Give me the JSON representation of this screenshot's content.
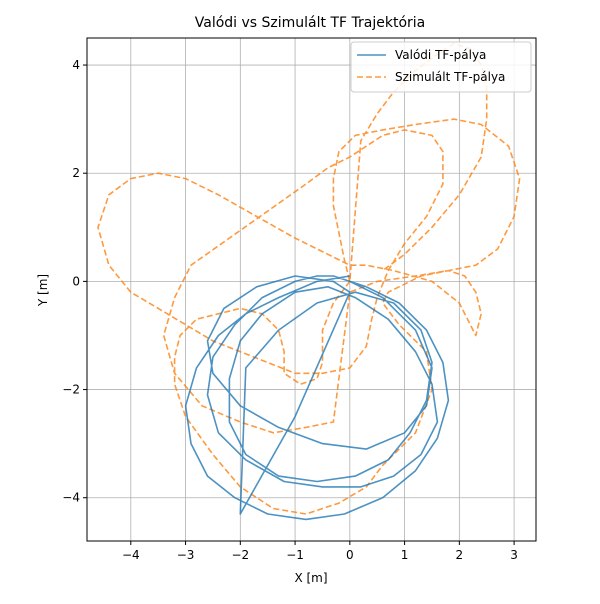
{
  "chart_data": {
    "type": "line",
    "title": "Valódi vs Szimulált TF Trajektória",
    "xlabel": "X [m]",
    "ylabel": "Y [m]",
    "xlim": [
      -4.8,
      3.4
    ],
    "ylim": [
      -4.8,
      4.5
    ],
    "grid": true,
    "legend_position": "top-right",
    "x_ticks": [
      -4,
      -3,
      -2,
      -1,
      0,
      1,
      2,
      3
    ],
    "y_ticks": [
      -4,
      -2,
      0,
      2,
      4
    ],
    "x_tick_labels": [
      "−4",
      "−3",
      "−2",
      "−1",
      "0",
      "1",
      "2",
      "3"
    ],
    "y_tick_labels": [
      "−4",
      "−2",
      "0",
      "2",
      "4"
    ],
    "series": [
      {
        "name": "Valódi TF-pálya",
        "color": "#1f77b4",
        "style": "solid",
        "x": [
          0,
          -0.6,
          -1.3,
          -1.9,
          -2.4,
          -2.8,
          -3.0,
          -2.9,
          -2.6,
          -2.1,
          -1.5,
          -0.8,
          -0.1,
          0.6,
          1.2,
          1.6,
          1.8,
          1.7,
          1.4,
          0.9,
          0.3,
          -0.3,
          -0.6,
          -1.0,
          -1.6,
          -2.1,
          -2.5,
          -2.6,
          -2.4,
          -1.9,
          -1.2,
          -0.5,
          0.2,
          0.8,
          1.3,
          1.6,
          1.5,
          1.2,
          0.7,
          0.1,
          -0.4,
          -1.0,
          -1.6,
          -2.0,
          -2.2,
          -2.2,
          -1.9,
          -1.3,
          -0.6,
          0.1,
          0.7,
          1.1,
          1.4,
          1.5,
          1.3,
          0.8,
          0.1,
          -0.6,
          -1.3,
          -1.9,
          -2.0,
          -1.0,
          0.0,
          -0.3,
          -1.0,
          -1.7,
          -2.3,
          -2.6,
          -2.5,
          -2.0,
          -1.3,
          -0.5,
          0.3,
          1.0,
          1.4,
          1.5,
          1.2,
          0.6,
          0.0
        ],
        "y": [
          0.1,
          0.0,
          -0.3,
          -0.6,
          -1.0,
          -1.6,
          -2.3,
          -3.0,
          -3.6,
          -4.0,
          -4.3,
          -4.4,
          -4.3,
          -4.0,
          -3.5,
          -2.9,
          -2.2,
          -1.5,
          -0.9,
          -0.4,
          -0.1,
          0.1,
          0.1,
          0.0,
          -0.3,
          -0.8,
          -1.4,
          -2.1,
          -2.8,
          -3.3,
          -3.7,
          -3.8,
          -3.8,
          -3.6,
          -3.2,
          -2.6,
          -1.9,
          -1.3,
          -0.7,
          -0.3,
          -0.1,
          -0.2,
          -0.6,
          -1.1,
          -1.8,
          -2.6,
          -3.2,
          -3.6,
          -3.7,
          -3.6,
          -3.3,
          -2.8,
          -2.2,
          -1.5,
          -0.9,
          -0.4,
          -0.2,
          -0.4,
          -0.9,
          -1.6,
          -4.3,
          -2.5,
          -0.2,
          0.0,
          0.1,
          -0.1,
          -0.5,
          -1.1,
          -1.7,
          -2.3,
          -2.7,
          -3.0,
          -3.1,
          -2.8,
          -2.3,
          -1.6,
          -0.9,
          -0.3,
          0.0
        ]
      },
      {
        "name": "Szimulált TF-pálya",
        "color": "#ff7f0e",
        "style": "dashed",
        "x": [
          0,
          -0.3,
          -0.5,
          -0.5,
          -0.6,
          -0.9,
          -1.2,
          -1.2,
          -1.3,
          -1.6,
          -2.0,
          -2.4,
          -2.8,
          -3.1,
          -3.2,
          -3.2,
          -3.0,
          -2.5,
          -2.0,
          -1.4,
          -0.8,
          -0.2,
          0.3,
          0.6,
          1.2,
          1.5,
          1.4,
          0.9,
          0.6,
          0.7,
          1.3,
          1.8,
          2.1,
          2.3,
          2.4,
          2.3,
          2.0,
          1.5,
          0.8,
          0.3,
          0.0,
          -0.4,
          -1.0,
          -1.7,
          -2.4,
          -3.0,
          -3.5,
          -4.0,
          -4.4,
          -4.6,
          -4.4,
          -4.0,
          -3.5,
          -3.0,
          -2.5,
          -2.0,
          -1.5,
          -1.0,
          -0.5,
          0.0,
          0.3,
          0.4,
          0.5,
          0.7,
          1.0,
          1.4,
          1.7,
          1.7,
          1.5,
          1.0,
          0.6,
          0.3,
          0.0,
          -0.4,
          -0.8,
          -1.5,
          -2.2,
          -2.9,
          -3.2,
          -3.4,
          -3.2,
          -2.7,
          -2.0,
          -1.4,
          -0.8,
          -0.3,
          0.0,
          0.5,
          1.2,
          1.8,
          2.3,
          2.7,
          3.0,
          3.1,
          2.9,
          2.4,
          1.9,
          1.2,
          0.6,
          0.1,
          -0.2,
          -0.3,
          -0.3,
          -0.2,
          -0.1,
          0.0,
          0.2,
          0.5,
          0.8,
          1.2,
          1.6,
          1.9,
          2.2,
          2.4,
          2.5,
          2.5,
          2.4,
          2.0,
          1.5,
          1.0,
          0.6
        ],
        "y": [
          0,
          -0.4,
          -0.9,
          -1.5,
          -1.8,
          -1.9,
          -1.7,
          -1.3,
          -0.9,
          -0.6,
          -0.5,
          -0.6,
          -0.7,
          -1.0,
          -1.4,
          -1.9,
          -2.5,
          -3.2,
          -3.8,
          -4.2,
          -4.3,
          -4.1,
          -3.8,
          -3.4,
          -2.8,
          -2.0,
          -1.3,
          -0.8,
          -0.4,
          -0.2,
          0.1,
          0.2,
          0.1,
          -0.2,
          -0.6,
          -1.0,
          -0.4,
          0.0,
          0.2,
          0.3,
          0.3,
          0.5,
          0.8,
          1.2,
          1.6,
          1.9,
          2.0,
          1.9,
          1.6,
          1.0,
          0.3,
          -0.2,
          -0.5,
          -0.8,
          -1.1,
          -1.3,
          -1.5,
          -1.7,
          -1.7,
          -1.6,
          -1.2,
          -0.7,
          -0.3,
          0.2,
          0.7,
          1.2,
          1.8,
          2.4,
          2.7,
          2.8,
          2.7,
          2.5,
          2.3,
          2.1,
          1.8,
          1.3,
          0.8,
          0.3,
          -0.3,
          -1.0,
          -1.7,
          -2.3,
          -2.6,
          -2.8,
          -2.7,
          -2.6,
          -0.2,
          0.0,
          0.1,
          0.2,
          0.3,
          0.6,
          1.2,
          1.9,
          2.5,
          2.9,
          3.0,
          2.9,
          2.8,
          2.7,
          2.4,
          1.9,
          1.4,
          0.9,
          0.4,
          0.0,
          2.6,
          3.1,
          3.5,
          3.9,
          4.2,
          4.4,
          4.3,
          4.0,
          3.6,
          3.0,
          2.3,
          1.6,
          1.0,
          0.5,
          0.2
        ]
      }
    ]
  }
}
